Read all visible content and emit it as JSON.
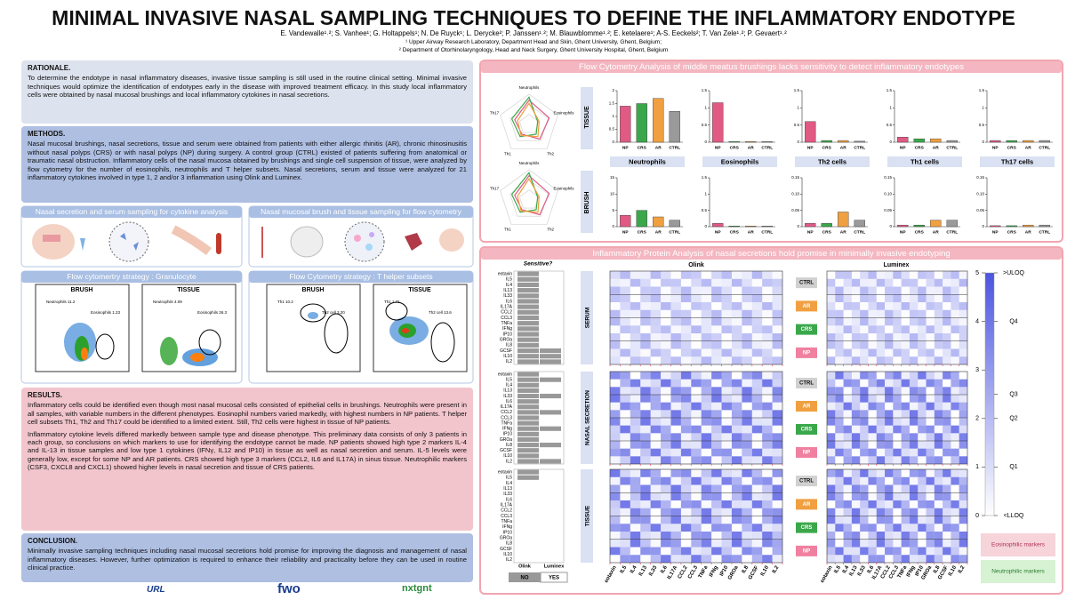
{
  "header": {
    "title": "MINIMAL INVASIVE NASAL SAMPLING TECHNIQUES TO DEFINE THE INFLAMMATORY ENDOTYPE",
    "authors": "E. Vandewalle¹˒²; S. Vanhee¹; G. Holtappels¹; N. De Ruyck¹; L. Derycke²; P. Janssen¹˒²; M. Blauwblomme¹˒²; E. ketelaere¹; A-S. Eeckels²; T. Van Zele¹˒²; P. Gevaert¹˒²",
    "affiliations": [
      "¹ Upper Airway Research Laboratory, Department Head and Skin, Ghent University, Ghent, Belgium;",
      "² Department of Otorhinolaryngology, Head and Neck Surgery, Ghent University Hospital, Ghent, Belgium"
    ]
  },
  "sections": {
    "rationale": {
      "title": "RATIONALE.",
      "text": "To determine the endotype in nasal inflammatory diseases, invasive tissue sampling is still used in the routine clinical setting. Minimal invasive techniques would optimize the identification of endotypes early in the disease with improved treatment efficacy. In this study local inflammatory cells were obtained by nasal mucosal brushings and local inflammatory cytokines in nasal secretions."
    },
    "methods": {
      "title": "METHODS.",
      "text": "Nasal mucosal brushings, nasal secretions, tissue and serum were obtained from patients with either allergic rhinitis (AR), chronic rhinosinusitis without nasal polyps (CRS) or with nasal polyps (NP) during surgery. A control group (CTRL) existed of patients suffering from anatomical or traumatic nasal obstruction. Inflammatory cells of the nasal mucosa obtained by brushings and single cell suspension of tissue, were analyzed by flow cytometry for the number of eosinophils, neutrophils and T helper subsets. Nasal secretions, serum and tissue were analyzed for 21 inflammatory cytokines involved in type 1, 2 and/or 3 inflammation using Olink and Luminex."
    },
    "results": {
      "title": "RESULTS.",
      "paragraphs": [
        "Inflammatory cells could be identified even though most nasal mucosal cells consisted of epithelial cells in brushings. Neutrophils were present in all samples, with variable numbers in the different phenotypes. Eosinophil numbers varied markedly, with highest numbers in NP patients. T helper cell subsets Th1, Th2 and Th17 could be identified to a limited extent. Still, Th2 cells were highest in tissue of NP patients.",
        "Inflammatory cytokine levels differed markedly between sample type and disease phenotype. This preliminary data consists of only 3 patients in each group, so conclusions on which markers to use for identifying  the endotype cannot be made. NP patients showed high type 2 markers IL-4 and IL-13 in tissue samples and low type 1 cytokines (IFNγ, IL12 and IP10) in tissue as well as nasal secretion and serum. IL-5 levels were generally low, except for some NP and AR patients. CRS showed high type 3 markers (CCL2, IL6 and IL17A) in sinus tissue. Neutrophilic markers (CSF3, CXCL8 and CXCL1) showed higher levels in nasal secretion and tissue of CRS patients."
      ]
    },
    "conclusion": {
      "title": "CONCLUSION.",
      "text": "Minimally invasive sampling techniques including nasal mucosal secretions hold promise for improving the diagnosis and management of nasal inflammatory diseases. However, further optimization is required to enhance their reliability and practicality before they can be used in routine clinical practice."
    }
  },
  "panels": {
    "sampling_cytokine": "Nasal secretion and serum sampling for cytokine analysis",
    "sampling_flow": "Nasal mucosal brush and tissue sampling for flow cytometry",
    "flow_granulocyte": {
      "title": "Flow cytomertry strategy : Granulocyte",
      "plots": [
        {
          "label": "BRUSH",
          "gates": [
            "Neutrophils 11.2",
            "Eosinophils 1.23"
          ]
        },
        {
          "label": "TISSUE",
          "gates": [
            "Neutrophils 4.09",
            "Eosinophils 26.3"
          ]
        }
      ]
    },
    "flow_thelper": {
      "title": "Flow Cytometry strategy : T helper subsets",
      "plots": [
        {
          "label": "BRUSH",
          "gates": [
            "Th1 10.2",
            "Th2 cell 3.20"
          ]
        },
        {
          "label": "TISSUE",
          "gates": [
            "Th1 1.71",
            "Th2 cell 13.6"
          ]
        }
      ]
    }
  },
  "flow_panel": {
    "title": "Flow Cytometry Analysis of middle meatus brushings lacks sensitivity to detect inflammatory endotypes",
    "rows": [
      "TISSUE",
      "BRUSH"
    ],
    "radar_axes": [
      "Neutrophils",
      "Eosinophils",
      "Th2",
      "Th1",
      "Th17"
    ]
  },
  "protein_panel": {
    "title": "Inflammatory Protein Analysis of nasal secretions hold promise in minimally invasive endotyping",
    "sensitive": "Sensitive?",
    "methods": [
      "Olink",
      "Luminex"
    ],
    "answers": [
      "NO",
      "YES"
    ],
    "tissues": [
      "SERUM",
      "NASAL SECRETION",
      "TISSUE"
    ],
    "groups": [
      "CTRL",
      "AR",
      "CRS",
      "NP"
    ],
    "cytokines": [
      "eotaxin",
      "IL5",
      "IL4",
      "IL13",
      "IL33",
      "IL6",
      "IL17A",
      "CCL2",
      "CCL3",
      "TNFa",
      "IFNg",
      "IP10",
      "GROa",
      "IL8",
      "GCSF",
      "IL10",
      "IL2"
    ],
    "legend": {
      "ylim": [
        0,
        5
      ],
      "ticks": [
        0,
        1,
        2,
        3,
        4,
        5
      ],
      "labels": [
        {
          "value": 5,
          "label": ">ULOQ"
        },
        {
          "value": 4,
          "label": "Q4"
        },
        {
          "value": 2.5,
          "label": "Q3"
        },
        {
          "value": 2,
          "label": "Q2"
        },
        {
          "value": 1,
          "label": "Q1"
        },
        {
          "value": 0,
          "label": "<LLOQ"
        }
      ]
    },
    "markers": [
      "Eosinophilic markers",
      "Neutrophilic markers"
    ]
  },
  "logos": [
    "URL",
    "fwo",
    "nxtgnt"
  ],
  "chart_data": [
    {
      "type": "bar",
      "title": "Neutrophils",
      "categories": [
        "NP",
        "CRS",
        "AR",
        "CTRL"
      ],
      "values": [
        1.4,
        1.5,
        1.7,
        1.2
      ],
      "colors": [
        "#e05a84",
        "#3aa84a",
        "#f0a040",
        "#9a9a9a"
      ],
      "ylim": [
        0,
        2
      ],
      "yticks": [
        0,
        0.5,
        1,
        1.5,
        2
      ]
    },
    {
      "type": "bar",
      "title": "Eosinophils",
      "categories": [
        "NP",
        "CRS",
        "AR",
        "CTRL"
      ],
      "values": [
        1.15,
        0.02,
        0.02,
        0.02
      ],
      "colors": [
        "#e05a84",
        "#3aa84a",
        "#f0a040",
        "#9a9a9a"
      ],
      "ylim": [
        0,
        1.5
      ],
      "yticks": [
        0,
        0.5,
        1,
        1.5
      ]
    },
    {
      "type": "bar",
      "title": "Th2 cells",
      "categories": [
        "NP",
        "CRS",
        "AR",
        "CTRL"
      ],
      "values": [
        0.6,
        0.05,
        0.05,
        0.03
      ],
      "colors": [
        "#e05a84",
        "#3aa84a",
        "#f0a040",
        "#9a9a9a"
      ],
      "ylim": [
        0,
        1.5
      ],
      "yticks": [
        0,
        0.5,
        1,
        1.5
      ]
    },
    {
      "type": "bar",
      "title": "Th1 cells",
      "categories": [
        "NP",
        "CRS",
        "AR",
        "CTRL"
      ],
      "values": [
        0.15,
        0.1,
        0.1,
        0.05
      ],
      "colors": [
        "#e05a84",
        "#3aa84a",
        "#f0a040",
        "#9a9a9a"
      ],
      "ylim": [
        0,
        1.5
      ],
      "yticks": [
        0,
        0.5,
        1,
        1.5
      ]
    },
    {
      "type": "bar",
      "title": "Th17 cells",
      "categories": [
        "NP",
        "CRS",
        "AR",
        "CTRL"
      ],
      "values": [
        0.05,
        0.05,
        0.05,
        0.05
      ],
      "colors": [
        "#e05a84",
        "#3aa84a",
        "#f0a040",
        "#9a9a9a"
      ],
      "ylim": [
        0,
        1.5
      ],
      "yticks": [
        0,
        0.5,
        1,
        1.5
      ]
    },
    {
      "type": "bar",
      "categories": [
        "NP",
        "CRS",
        "AR",
        "CTRL"
      ],
      "values": [
        3.5,
        5,
        3,
        2
      ],
      "colors": [
        "#e05a84",
        "#3aa84a",
        "#f0a040",
        "#9a9a9a"
      ],
      "ylim": [
        0,
        15
      ],
      "yticks": [
        0,
        5,
        10,
        15
      ]
    },
    {
      "type": "bar",
      "categories": [
        "NP",
        "CRS",
        "AR",
        "CTRL"
      ],
      "values": [
        0.1,
        0.02,
        0.02,
        0.02
      ],
      "colors": [
        "#e05a84",
        "#3aa84a",
        "#f0a040",
        "#9a9a9a"
      ],
      "ylim": [
        0,
        1.5
      ],
      "yticks": [
        0,
        0.5,
        1,
        1.5
      ]
    },
    {
      "type": "bar",
      "categories": [
        "NP",
        "CRS",
        "AR",
        "CTRL"
      ],
      "values": [
        0.01,
        0.01,
        0.045,
        0.02
      ],
      "colors": [
        "#e05a84",
        "#3aa84a",
        "#f0a040",
        "#9a9a9a"
      ],
      "ylim": [
        0,
        0.15
      ],
      "yticks": [
        0,
        0.05,
        {
          "value": 0.1,
          "label": "0.10"
        },
        0.15
      ]
    },
    {
      "type": "bar",
      "categories": [
        "NP",
        "CRS",
        "AR",
        "CTRL"
      ],
      "values": [
        0.005,
        0.005,
        0.02,
        0.02
      ],
      "colors": [
        "#e05a84",
        "#3aa84a",
        "#f0a040",
        "#9a9a9a"
      ],
      "ylim": [
        0,
        0.15
      ],
      "yticks": [
        0,
        0.05,
        {
          "value": 0.1,
          "label": "0.10"
        },
        0.15
      ]
    },
    {
      "type": "bar",
      "categories": [
        "NP",
        "CRS",
        "AR",
        "CTRL"
      ],
      "values": [
        0.003,
        0.003,
        0.005,
        0.005
      ],
      "colors": [
        "#e05a84",
        "#3aa84a",
        "#f0a040",
        "#9a9a9a"
      ],
      "ylim": [
        0,
        0.15
      ],
      "yticks": [
        0,
        0.05,
        {
          "value": 0.1,
          "label": "0.10"
        },
        0.15
      ]
    }
  ]
}
